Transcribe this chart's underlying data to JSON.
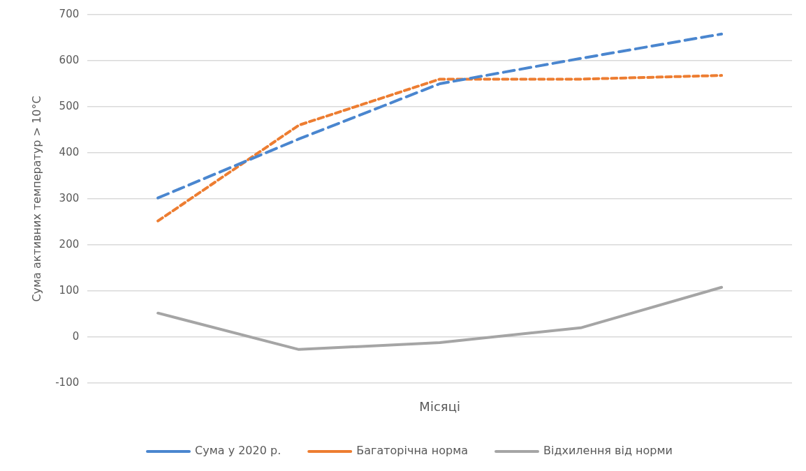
{
  "chart_data": {
    "type": "line",
    "xlabel": "Місяці",
    "ylabel": "Сума активних температур > 10°С",
    "categories": [
      null,
      null,
      null,
      null,
      null
    ],
    "series": [
      {
        "name": "Сума у 2020 р.",
        "color": "#4a86cf",
        "line_style": "dashed",
        "values": [
          302,
          430,
          550,
          605,
          658
        ]
      },
      {
        "name": "Багаторічна норма",
        "color": "#ed7d31",
        "line_style": "dotted",
        "values": [
          252,
          460,
          560,
          560,
          568
        ]
      },
      {
        "name": "Відхилення від норми",
        "color": "#a5a5a5",
        "line_style": "solid",
        "values": [
          52,
          -27,
          -12,
          20,
          108
        ]
      }
    ],
    "ylim": [
      -100,
      700
    ],
    "yticks": [
      -100,
      0,
      100,
      200,
      300,
      400,
      500,
      600,
      700
    ],
    "grid": "y",
    "legend": "bottom",
    "marker": "none"
  }
}
